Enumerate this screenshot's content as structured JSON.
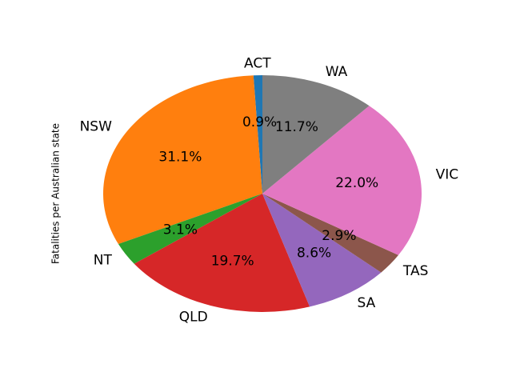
{
  "chart_data": {
    "type": "pie",
    "ylabel": "Fatalities per Australian state",
    "start_angle_deg": 90,
    "direction": "counterclockwise",
    "slices": [
      {
        "label": "ACT",
        "percent": 0.9,
        "pct_text": "0.9%",
        "color": "#1f77b4"
      },
      {
        "label": "NSW",
        "percent": 31.1,
        "pct_text": "31.1%",
        "color": "#ff7f0e"
      },
      {
        "label": "NT",
        "percent": 3.1,
        "pct_text": "3.1%",
        "color": "#2ca02c"
      },
      {
        "label": "QLD",
        "percent": 19.7,
        "pct_text": "19.7%",
        "color": "#d62728"
      },
      {
        "label": "SA",
        "percent": 8.6,
        "pct_text": "8.6%",
        "color": "#9467bd"
      },
      {
        "label": "TAS",
        "percent": 2.9,
        "pct_text": "2.9%",
        "color": "#8c564b"
      },
      {
        "label": "VIC",
        "percent": 22.0,
        "pct_text": "22.0%",
        "color": "#e377c2"
      },
      {
        "label": "WA",
        "percent": 11.7,
        "pct_text": "11.7%",
        "color": "#7f7f7f"
      }
    ]
  }
}
